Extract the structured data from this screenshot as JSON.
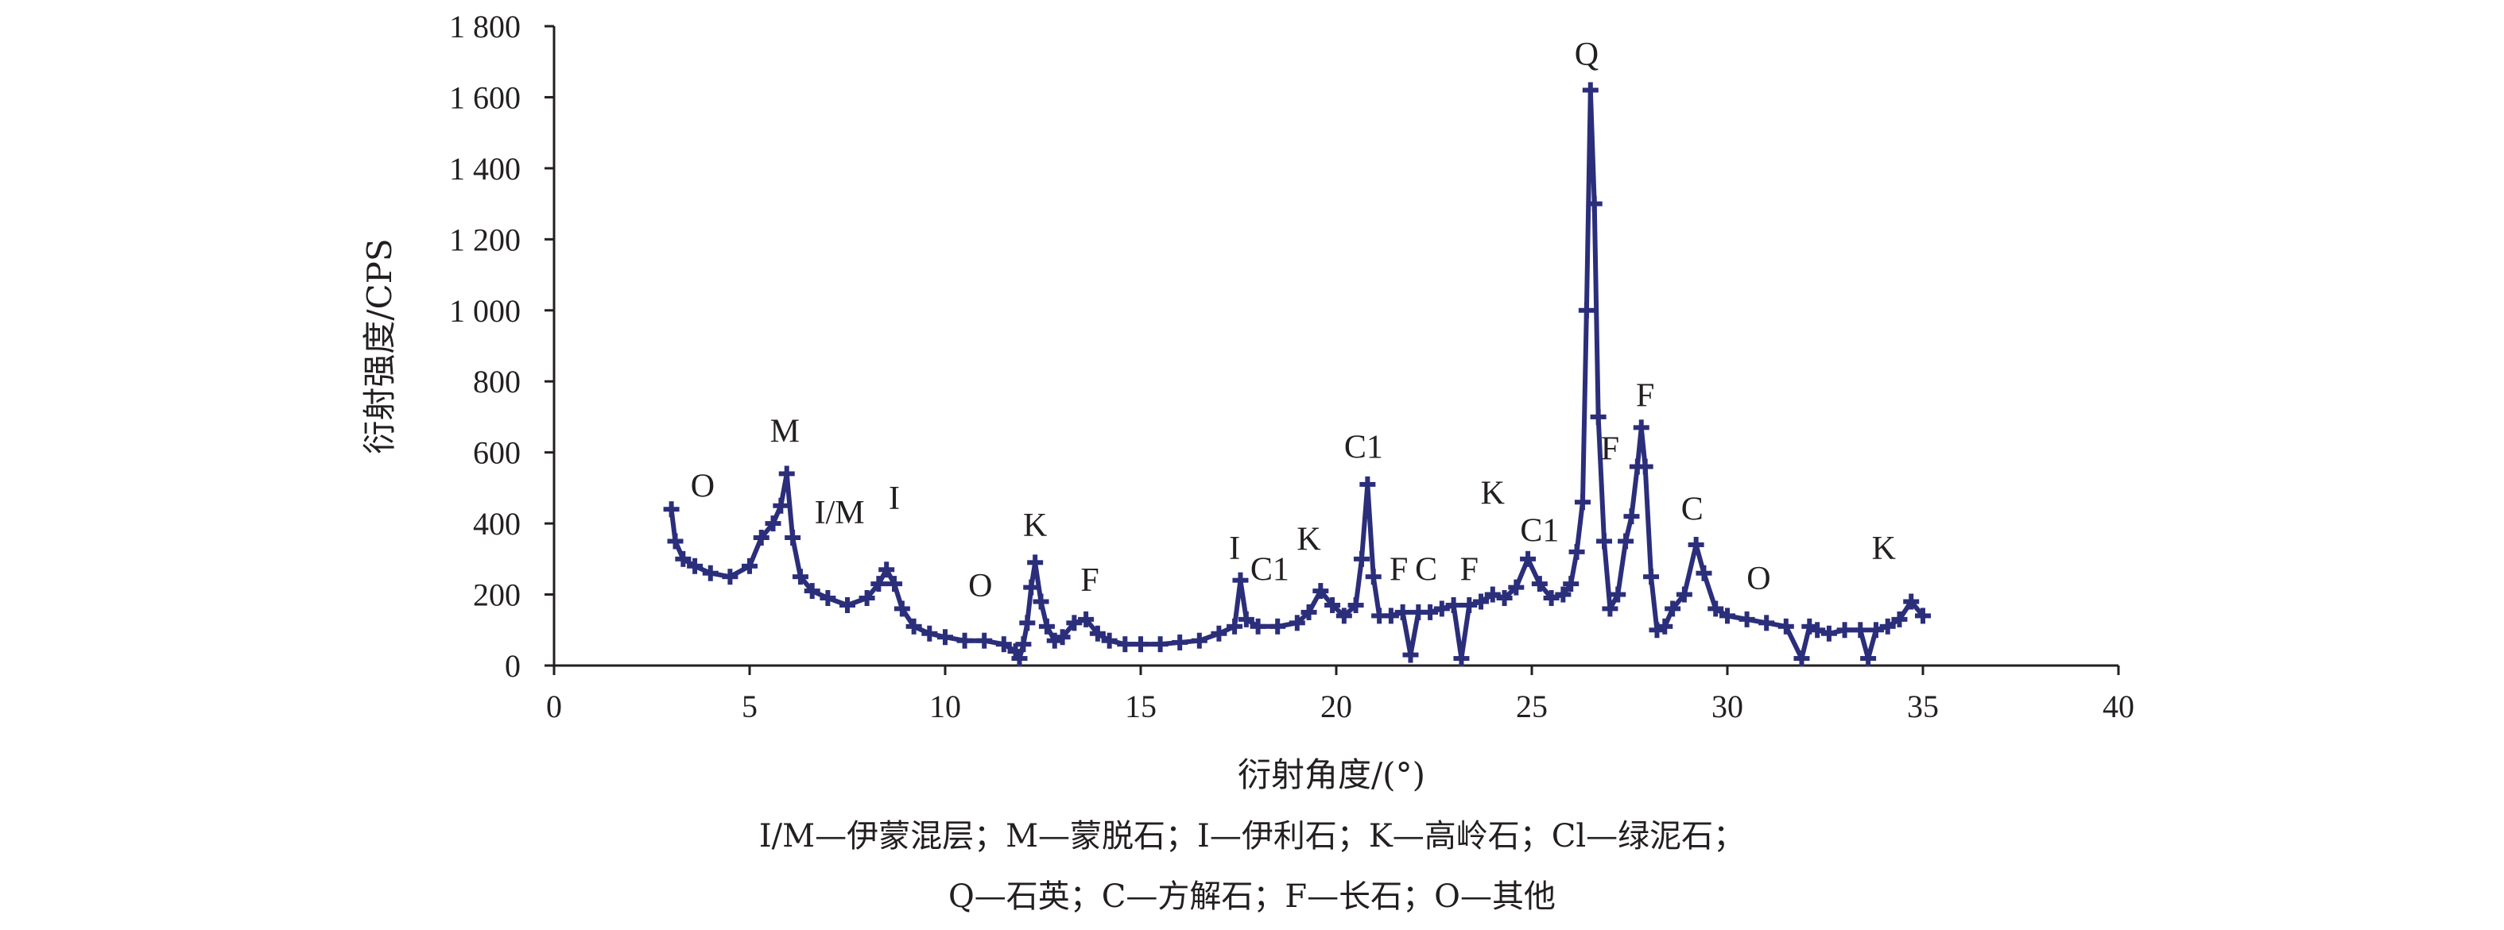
{
  "chart_data": {
    "type": "line",
    "title": "",
    "xlabel": "衍射角度/(°)",
    "ylabel": "衍射强度/CPS",
    "xlim": [
      0,
      40
    ],
    "ylim": [
      0,
      1800
    ],
    "x_ticks": [
      0,
      5,
      10,
      15,
      20,
      25,
      30,
      35,
      40
    ],
    "x_tick_labels": [
      "0",
      "5",
      "10",
      "15",
      "20",
      "25",
      "30",
      "35",
      "40"
    ],
    "y_ticks": [
      0,
      200,
      400,
      600,
      800,
      1000,
      1200,
      1400,
      1600,
      1800
    ],
    "y_tick_labels": [
      "0",
      "200",
      "400",
      "600",
      "800",
      "1 000",
      "1 200",
      "1 400",
      "1 600",
      "1 800"
    ],
    "grid": false,
    "series_color": "#2b2e7a",
    "series": [
      {
        "x": [
          3.0,
          3.1,
          3.3,
          3.6,
          4.0,
          4.5,
          5.0,
          5.3,
          5.6,
          5.8,
          5.95,
          6.1,
          6.3,
          6.6,
          7.0,
          7.5,
          8.0,
          8.3,
          8.5,
          8.7,
          8.9,
          9.2,
          9.6,
          10.0,
          10.5,
          11.0,
          11.5,
          11.8,
          11.9,
          12.0,
          12.1,
          12.2,
          12.3,
          12.45,
          12.6,
          12.8,
          13.0,
          13.3,
          13.6,
          13.9,
          14.2,
          14.6,
          15.0,
          15.5,
          16.0,
          16.5,
          17.0,
          17.4,
          17.55,
          17.7,
          18.0,
          18.5,
          19.0,
          19.3,
          19.6,
          19.9,
          20.2,
          20.5,
          20.65,
          20.8,
          20.95,
          21.1,
          21.4,
          21.7,
          21.9,
          22.1,
          22.4,
          22.7,
          23.0,
          23.2,
          23.4,
          23.7,
          24.0,
          24.3,
          24.6,
          24.9,
          25.2,
          25.5,
          25.8,
          26.0,
          26.15,
          26.3,
          26.4,
          26.5,
          26.6,
          26.7,
          26.85,
          27.0,
          27.2,
          27.4,
          27.55,
          27.7,
          27.8,
          27.9,
          28.05,
          28.2,
          28.4,
          28.6,
          28.9,
          29.2,
          29.4,
          29.7,
          30.0,
          30.5,
          31.0,
          31.5,
          31.9,
          32.1,
          32.3,
          32.6,
          33.0,
          33.4,
          33.6,
          33.8,
          34.1,
          34.4,
          34.7,
          35.0
        ],
        "y": [
          440,
          350,
          300,
          280,
          260,
          250,
          280,
          360,
          400,
          450,
          540,
          360,
          250,
          210,
          190,
          170,
          190,
          230,
          270,
          230,
          160,
          110,
          90,
          80,
          70,
          70,
          60,
          40,
          20,
          60,
          120,
          220,
          290,
          180,
          110,
          70,
          80,
          120,
          130,
          90,
          70,
          60,
          60,
          60,
          65,
          70,
          90,
          110,
          240,
          130,
          110,
          110,
          120,
          150,
          210,
          170,
          140,
          170,
          300,
          510,
          250,
          140,
          140,
          150,
          30,
          150,
          150,
          160,
          170,
          20,
          170,
          180,
          200,
          190,
          220,
          300,
          230,
          190,
          200,
          230,
          320,
          460,
          1000,
          1620,
          1300,
          700,
          350,
          160,
          200,
          350,
          420,
          560,
          670,
          560,
          250,
          100,
          110,
          160,
          200,
          340,
          260,
          160,
          140,
          130,
          120,
          110,
          20,
          110,
          100,
          90,
          100,
          100,
          20,
          100,
          110,
          130,
          180,
          140
        ]
      }
    ],
    "annotations": [
      {
        "text": "O",
        "x": 3.8,
        "y": 475
      },
      {
        "text": "M",
        "x": 5.9,
        "y": 630
      },
      {
        "text": "I/M",
        "x": 7.3,
        "y": 400
      },
      {
        "text": "I",
        "x": 8.7,
        "y": 440
      },
      {
        "text": "O",
        "x": 10.9,
        "y": 195
      },
      {
        "text": "K",
        "x": 12.3,
        "y": 365
      },
      {
        "text": "F",
        "x": 13.7,
        "y": 210
      },
      {
        "text": "I",
        "x": 17.4,
        "y": 300
      },
      {
        "text": "C1",
        "x": 18.3,
        "y": 240
      },
      {
        "text": "K",
        "x": 19.3,
        "y": 325
      },
      {
        "text": "C1",
        "x": 20.7,
        "y": 585
      },
      {
        "text": "F",
        "x": 21.6,
        "y": 240
      },
      {
        "text": "C",
        "x": 22.3,
        "y": 240
      },
      {
        "text": "F",
        "x": 23.4,
        "y": 240
      },
      {
        "text": "K",
        "x": 24.0,
        "y": 455
      },
      {
        "text": "C1",
        "x": 25.2,
        "y": 350
      },
      {
        "text": "Q",
        "x": 26.4,
        "y": 1690
      },
      {
        "text": "F",
        "x": 27.0,
        "y": 580
      },
      {
        "text": "F",
        "x": 27.9,
        "y": 730
      },
      {
        "text": "C",
        "x": 29.1,
        "y": 410
      },
      {
        "text": "O",
        "x": 30.8,
        "y": 215
      },
      {
        "text": "K",
        "x": 34.0,
        "y": 300
      }
    ]
  },
  "legend": {
    "line1": "I/M—伊蒙混层；M—蒙脱石；I—伊利石；K—高岭石；Cl—绿泥石；",
    "line2": "Q—石英；C—方解石；F—长石；O—其他"
  }
}
